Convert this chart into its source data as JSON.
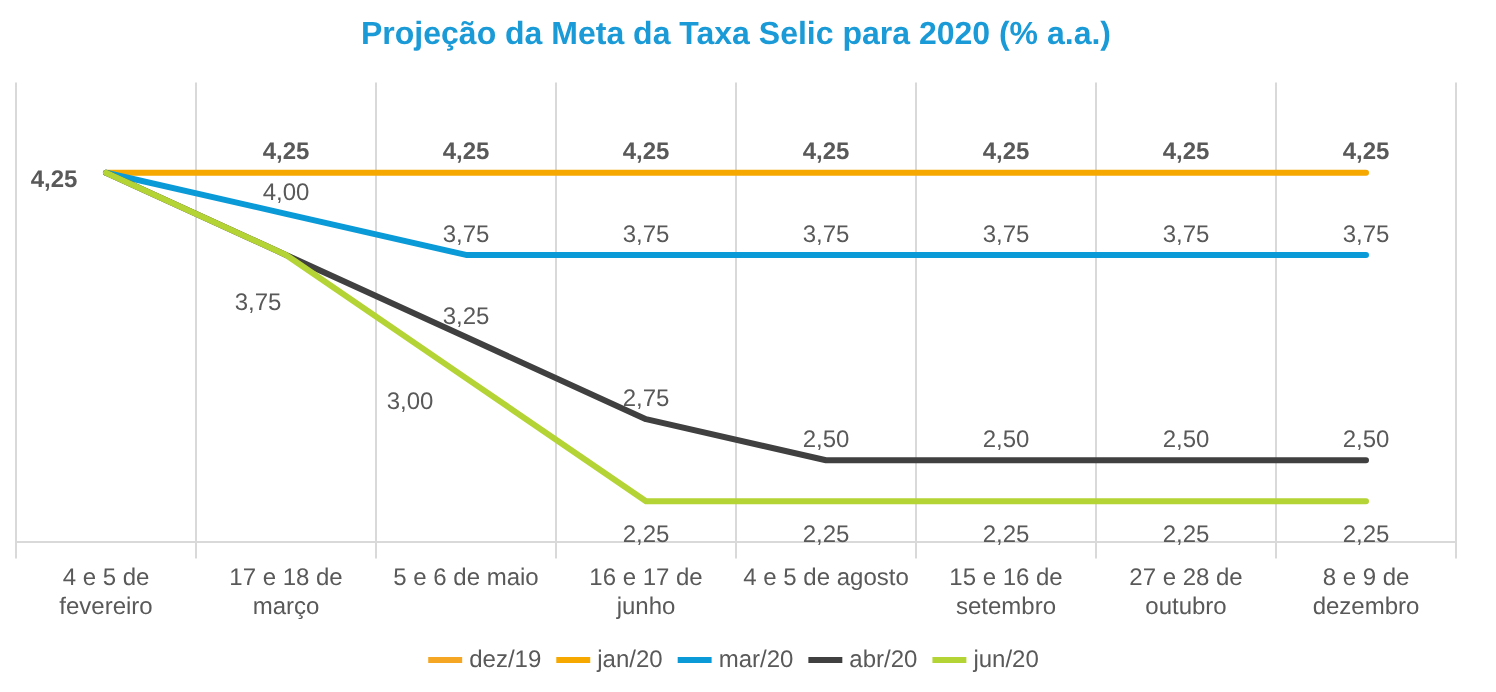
{
  "chart_data": {
    "type": "line",
    "title": "Projeção da Meta da Taxa Selic para 2020 (% a.a.)",
    "categories": [
      "4 e 5 de fevereiro",
      "17 e 18 de março",
      "5 e 6 de maio",
      "16 e 17 de junho",
      "4 e 5 de agosto",
      "15 e 16 de setembro",
      "27 e 28 de outubro",
      "8 e 9 de dezembro"
    ],
    "series": [
      {
        "name": "dez/19",
        "color": "#f5a623",
        "values": [
          null,
          null,
          null,
          null,
          null,
          null,
          null,
          null
        ],
        "value_labels": [
          null,
          null,
          null,
          null,
          null,
          null,
          null,
          null
        ]
      },
      {
        "name": "jan/20",
        "color": "#f6a800",
        "values": [
          4.25,
          4.25,
          4.25,
          4.25,
          4.25,
          4.25,
          4.25,
          4.25
        ],
        "value_labels": [
          "4,25",
          "4,25",
          "4,25",
          "4,25",
          "4,25",
          "4,25",
          "4,25",
          "4,25"
        ]
      },
      {
        "name": "mar/20",
        "color": "#0a9ad8",
        "values": [
          4.25,
          4.0,
          3.75,
          3.75,
          3.75,
          3.75,
          3.75,
          3.75
        ],
        "value_labels": [
          null,
          "4,00",
          "3,75",
          "3,75",
          "3,75",
          "3,75",
          "3,75",
          "3,75"
        ]
      },
      {
        "name": "abr/20",
        "color": "#404040",
        "values": [
          4.25,
          3.75,
          3.25,
          2.75,
          2.5,
          2.5,
          2.5,
          2.5
        ],
        "value_labels": [
          null,
          "3,75",
          "3,25",
          "2,75",
          "2,50",
          "2,50",
          "2,50",
          "2,50"
        ]
      },
      {
        "name": "jun/20",
        "color": "#b4d334",
        "values": [
          4.25,
          3.75,
          3.0,
          2.25,
          2.25,
          2.25,
          2.25,
          2.25
        ],
        "value_labels": [
          null,
          null,
          "3,00",
          "2,25",
          "2,25",
          "2,25",
          "2,25",
          "2,25"
        ]
      }
    ],
    "ylim": [
      2.0,
      4.8
    ],
    "tick_labels": "x",
    "grid": "x",
    "legend": "bottom",
    "marker": "none",
    "line_style": "solid"
  }
}
